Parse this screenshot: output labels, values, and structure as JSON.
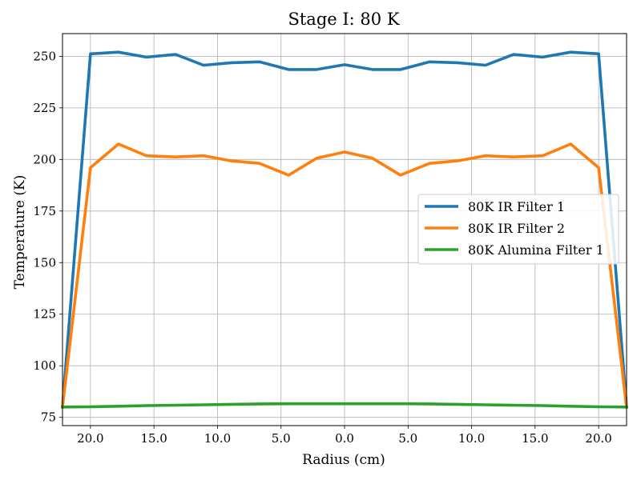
{
  "chart_data": {
    "type": "line",
    "title": "Stage I: 80 K",
    "xlabel": "Radius (cm)",
    "ylabel": "Temperature (K)",
    "x": [
      -22.2,
      -20.0,
      -17.8,
      -15.6,
      -13.3,
      -11.1,
      -8.9,
      -6.7,
      -4.4,
      -2.2,
      0.0,
      2.2,
      4.4,
      6.7,
      8.9,
      11.1,
      13.3,
      15.6,
      17.8,
      20.0,
      22.2
    ],
    "xlim": [
      -22.2,
      22.2
    ],
    "ylim": [
      71,
      261
    ],
    "yticks": [
      75,
      100,
      125,
      150,
      175,
      200,
      225,
      250
    ],
    "xticks": [
      -20,
      -15,
      -10,
      -5,
      0,
      5,
      10,
      15,
      20
    ],
    "xtick_labels": [
      "20.0",
      "15.0",
      "10.0",
      "5.0",
      "0.0",
      "5.0",
      "10.0",
      "15.0",
      "20.0"
    ],
    "grid": true,
    "legend_position": "center-right",
    "series": [
      {
        "name": "80K IR Filter 1",
        "color": "#1f77b4",
        "values": [
          80,
          251.2,
          252.0,
          249.6,
          250.9,
          245.7,
          246.9,
          247.3,
          243.6,
          243.6,
          245.9,
          243.6,
          243.6,
          247.3,
          246.9,
          245.7,
          250.9,
          249.6,
          252.0,
          251.2,
          80
        ]
      },
      {
        "name": "80K IR Filter 2",
        "color": "#ff7f0e",
        "values": [
          80,
          196.0,
          207.5,
          201.8,
          201.2,
          201.8,
          199.3,
          198.1,
          192.4,
          200.6,
          203.6,
          200.6,
          192.4,
          198.1,
          199.3,
          201.8,
          201.2,
          201.8,
          207.5,
          196.0,
          80
        ]
      },
      {
        "name": "80K Alumina Filter 1",
        "color": "#2ca02c",
        "values": [
          80.0,
          80.1,
          80.4,
          80.7,
          80.9,
          81.1,
          81.3,
          81.5,
          81.6,
          81.6,
          81.6,
          81.6,
          81.6,
          81.5,
          81.3,
          81.1,
          80.9,
          80.7,
          80.4,
          80.1,
          80.0
        ]
      }
    ]
  }
}
